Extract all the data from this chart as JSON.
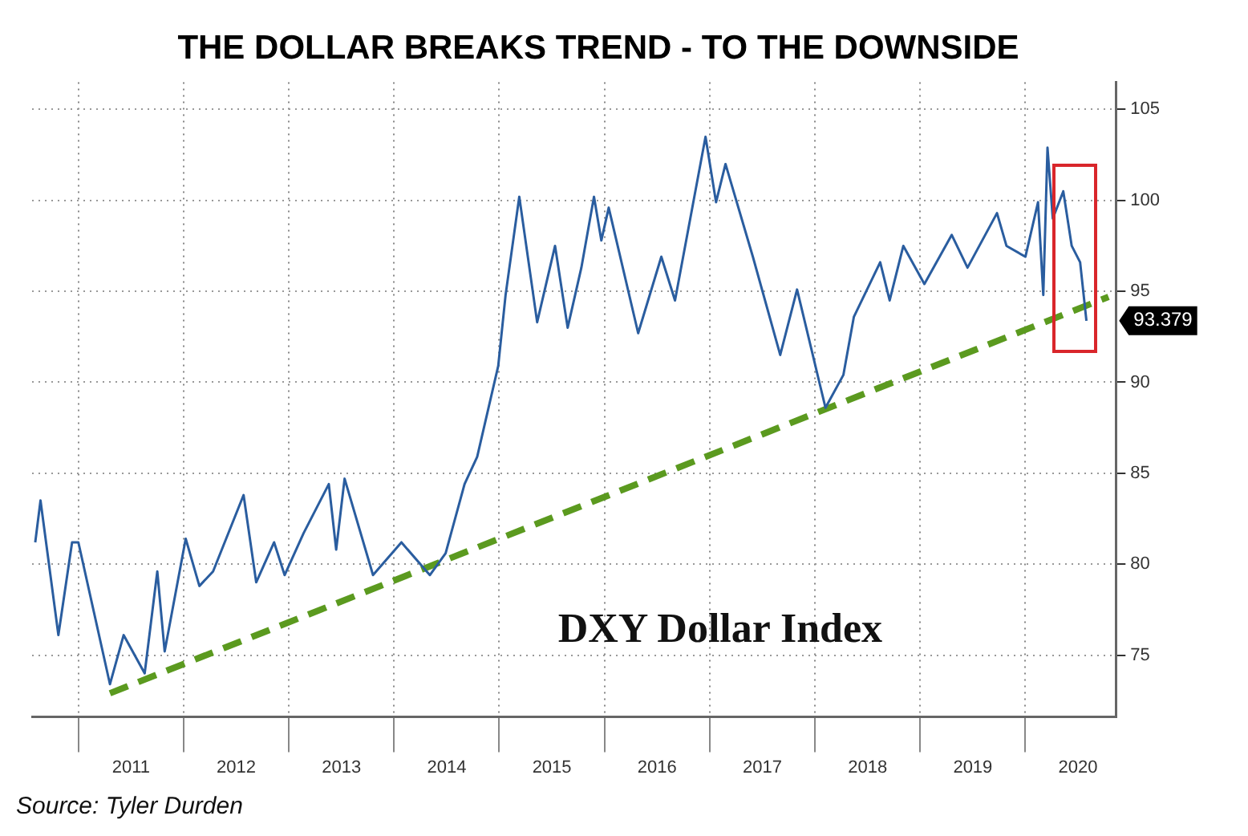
{
  "chart_data": {
    "type": "line",
    "title": "THE DOLLAR BREAKS TREND - TO THE DOWNSIDE",
    "annotations": [
      "DXY Dollar Index",
      "Source: Tyler Durden",
      {
        "text": "93.379",
        "x": 2020.58,
        "y": 93.379
      }
    ],
    "series": [
      {
        "color": "#2a5d9f",
        "x": [
          2010.59,
          2010.64,
          2010.81,
          2010.94,
          2011.0,
          2011.3,
          2011.43,
          2011.63,
          2011.75,
          2011.82,
          2012.02,
          2012.15,
          2012.28,
          2012.57,
          2012.69,
          2012.86,
          2012.96,
          2013.14,
          2013.38,
          2013.45,
          2013.53,
          2013.8,
          2014.07,
          2014.34,
          2014.49,
          2014.67,
          2014.79,
          2014.99,
          2015.06,
          2015.19,
          2015.36,
          2015.53,
          2015.65,
          2015.78,
          2015.9,
          2015.97,
          2016.04,
          2016.32,
          2016.54,
          2016.67,
          2016.96,
          2017.06,
          2017.15,
          2017.41,
          2017.67,
          2017.83,
          2018.05,
          2018.1,
          2018.27,
          2018.37,
          2018.62,
          2018.71,
          2018.84,
          2019.04,
          2019.3,
          2019.45,
          2019.73,
          2019.82,
          2020.0,
          2020.12,
          2020.17,
          2020.21,
          2020.26,
          2020.36,
          2020.44,
          2020.52,
          2020.58
        ],
        "values": [
          81.2,
          83.5,
          76.1,
          81.2,
          81.2,
          73.4,
          76.1,
          74.0,
          79.6,
          75.2,
          81.4,
          78.8,
          79.6,
          83.8,
          79.0,
          81.2,
          79.4,
          81.7,
          84.4,
          80.8,
          84.7,
          79.4,
          81.2,
          79.4,
          80.6,
          84.4,
          85.9,
          90.9,
          94.8,
          100.2,
          93.3,
          97.5,
          93.0,
          96.3,
          100.2,
          97.8,
          99.6,
          92.7,
          96.9,
          94.5,
          103.5,
          99.9,
          102.0,
          96.9,
          91.5,
          95.1,
          89.8,
          88.6,
          90.4,
          93.6,
          96.6,
          94.5,
          97.5,
          95.4,
          98.1,
          96.3,
          99.3,
          97.5,
          96.9,
          99.9,
          94.8,
          102.9,
          99.0,
          100.5,
          97.5,
          96.6,
          93.379
        ]
      },
      {
        "type": "line",
        "color": "#5b9a1f",
        "line_style": "dashed",
        "x": [
          2011.3,
          2020.79
        ],
        "values": [
          72.9,
          94.7
        ]
      }
    ],
    "xlim": [
      2010.56,
      2020.86
    ],
    "xticks": [
      {
        "value": 2011,
        "label": null
      },
      {
        "value": 2011.5,
        "label": "2011"
      },
      {
        "value": 2012,
        "label": null
      },
      {
        "value": 2012.5,
        "label": "2012"
      },
      {
        "value": 2013,
        "label": null
      },
      {
        "value": 2013.5,
        "label": "2013"
      },
      {
        "value": 2014,
        "label": null
      },
      {
        "value": 2014.5,
        "label": "2014"
      },
      {
        "value": 2015,
        "label": null
      },
      {
        "value": 2015.5,
        "label": "2015"
      },
      {
        "value": 2016,
        "label": null
      },
      {
        "value": 2016.5,
        "label": "2016"
      },
      {
        "value": 2017,
        "label": null
      },
      {
        "value": 2017.5,
        "label": "2017"
      },
      {
        "value": 2018,
        "label": null
      },
      {
        "value": 2018.5,
        "label": "2018"
      },
      {
        "value": 2019,
        "label": null
      },
      {
        "value": 2019.5,
        "label": "2019"
      },
      {
        "value": 2020,
        "label": null
      },
      {
        "value": 2020.5,
        "label": "2020"
      }
    ],
    "ylim": [
      71.6,
      106.5
    ],
    "yticks": [
      75,
      80,
      85,
      90,
      95,
      100,
      105
    ],
    "grid": true,
    "legend": false,
    "line_style": "solid",
    "marker": "none"
  }
}
